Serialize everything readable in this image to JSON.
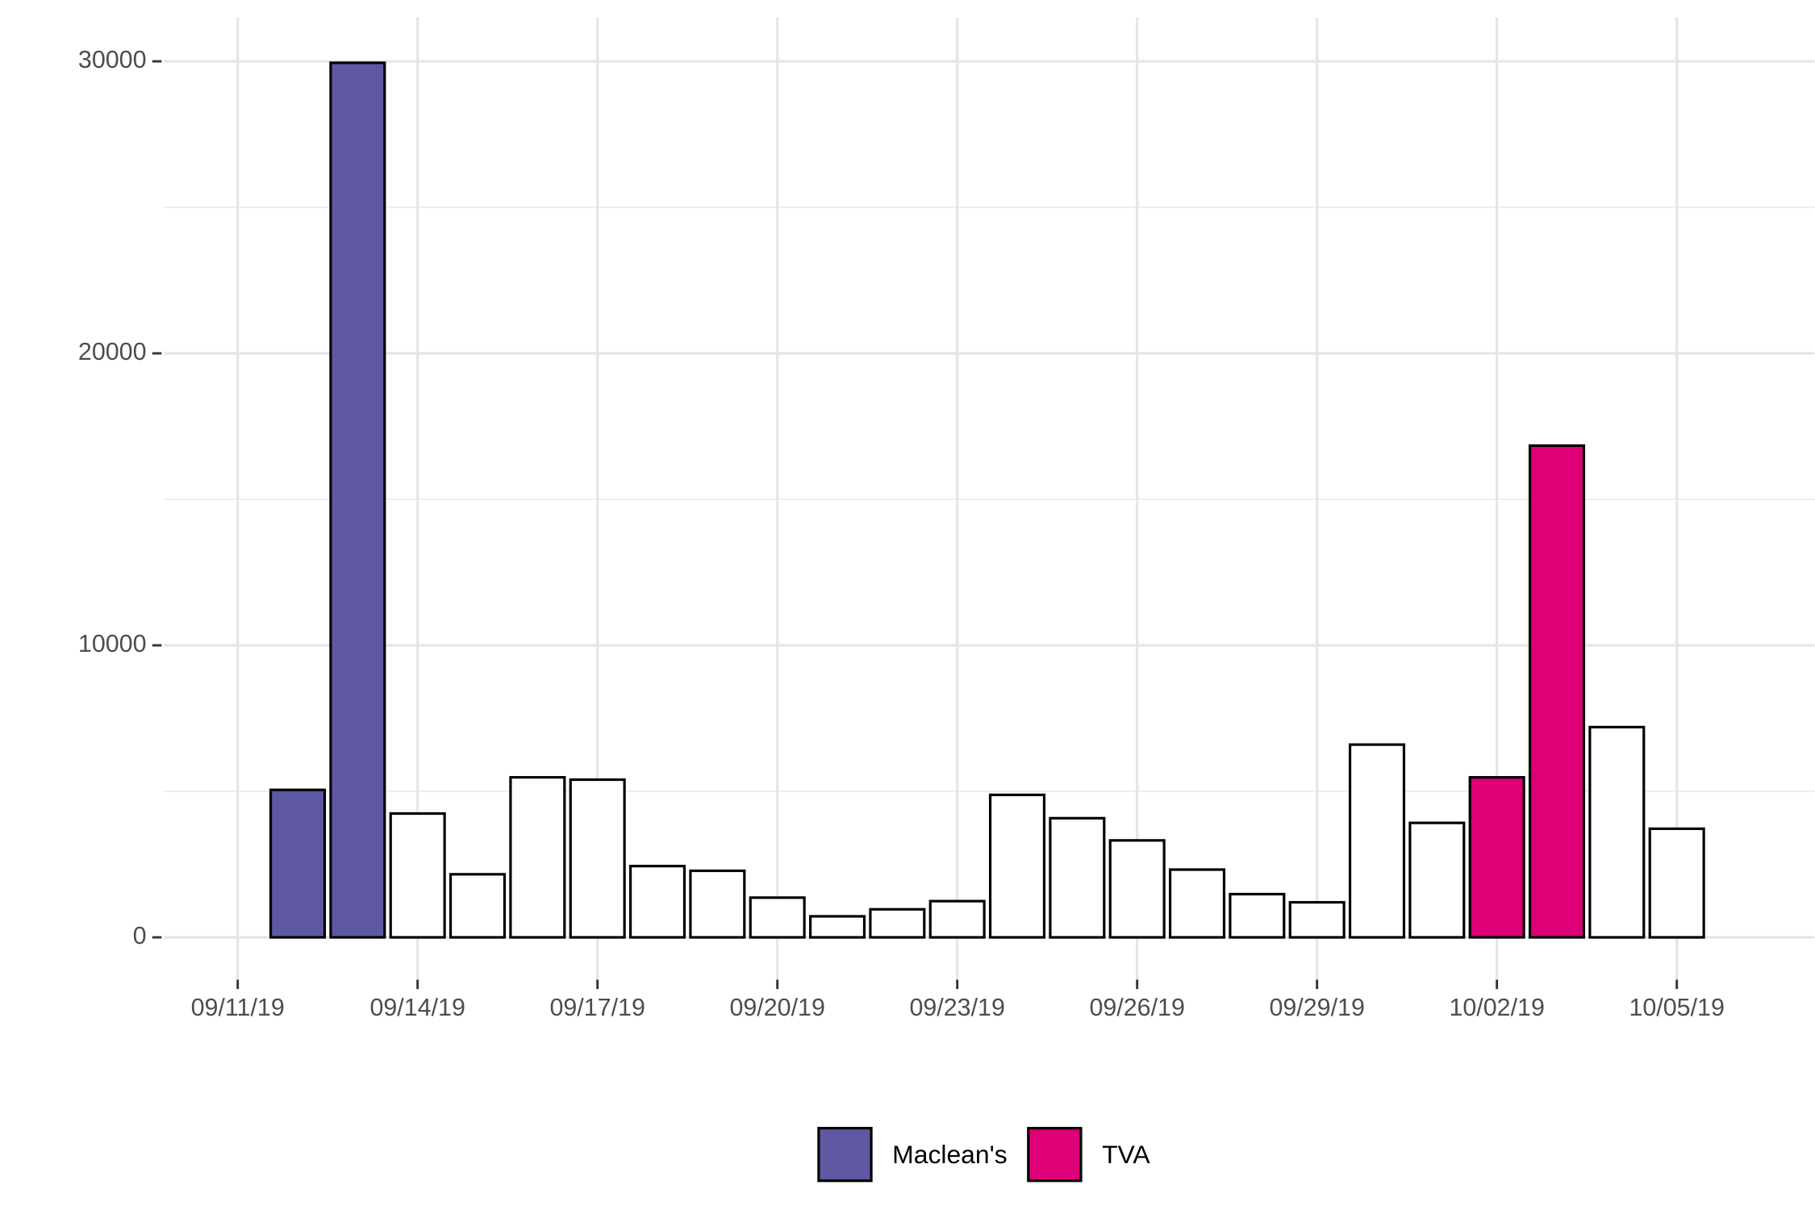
{
  "chart_data": {
    "type": "bar",
    "x": [
      "09/12/19",
      "09/13/19",
      "09/14/19",
      "09/15/19",
      "09/16/19",
      "09/17/19",
      "09/18/19",
      "09/19/19",
      "09/20/19",
      "09/21/19",
      "09/22/19",
      "09/23/19",
      "09/24/19",
      "09/25/19",
      "09/26/19",
      "09/27/19",
      "09/28/19",
      "09/29/19",
      "09/30/19",
      "10/01/19",
      "10/02/19",
      "10/03/19",
      "10/04/19",
      "10/05/19"
    ],
    "series": [
      {
        "name": "Maclean's",
        "color": "#5e58a3",
        "values": [
          5050,
          29950,
          null,
          null,
          null,
          null,
          null,
          null,
          null,
          null,
          null,
          null,
          null,
          null,
          null,
          null,
          null,
          null,
          null,
          null,
          null,
          null,
          null,
          null
        ]
      },
      {
        "name": "TVA",
        "color": "#de0077",
        "values": [
          null,
          null,
          null,
          null,
          null,
          null,
          null,
          null,
          null,
          null,
          null,
          null,
          null,
          null,
          null,
          null,
          null,
          null,
          null,
          null,
          5480,
          16840,
          null,
          null
        ]
      },
      {
        "color": "#ffffff",
        "values": [
          null,
          null,
          4240,
          2160,
          5480,
          5400,
          2440,
          2280,
          1360,
          720,
          960,
          1240,
          4880,
          4080,
          3320,
          2320,
          1480,
          1200,
          6600,
          3920,
          null,
          null,
          7200,
          3720
        ]
      }
    ],
    "xticks": [
      "09/11/19",
      "09/14/19",
      "09/17/19",
      "09/20/19",
      "09/23/19",
      "09/26/19",
      "09/29/19",
      "10/02/19",
      "10/05/19"
    ],
    "ylim": [
      -1450,
      31500
    ],
    "yticks": [
      0,
      10000,
      20000,
      30000
    ],
    "minor_yticks": [
      5000,
      15000,
      25000
    ],
    "grid": true,
    "legend": "bottom"
  }
}
